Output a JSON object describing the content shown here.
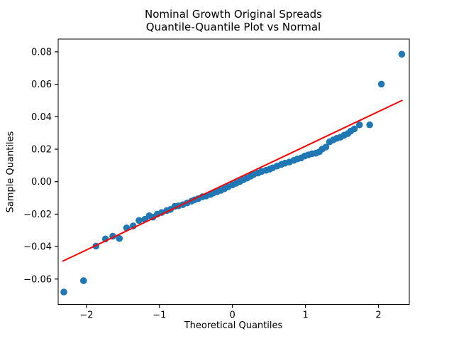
{
  "header": {
    "title_line1": "Nominal Growth Original Spreads",
    "title_line2": "Quantile-Quantile Plot vs Normal"
  },
  "chart_data": {
    "type": "scatter",
    "title": "Nominal Growth Original Spreads\nQuantile-Quantile Plot vs Normal",
    "xlabel": "Theoretical Quantiles",
    "ylabel": "Sample Quantiles",
    "xlim": [
      -2.39,
      2.42
    ],
    "ylim": [
      -0.0756,
      0.0878
    ],
    "xticks": [
      -2,
      -1,
      0,
      1,
      2
    ],
    "yticks": [
      -0.06,
      -0.04,
      -0.02,
      0.0,
      0.02,
      0.04,
      0.06,
      0.08
    ],
    "grid": false,
    "legend_position": "none",
    "marker_color": "#1f77b4",
    "line_color": "#ff0000",
    "series": [
      {
        "name": "sample_vs_theoretical_quantiles",
        "type": "scatter",
        "color": "#1f77b4",
        "points": [
          [
            -2.31,
            -0.068
          ],
          [
            -2.04,
            -0.061
          ],
          [
            -1.87,
            -0.0397
          ],
          [
            -1.74,
            -0.0353
          ],
          [
            -1.64,
            -0.0336
          ],
          [
            -1.55,
            -0.035
          ],
          [
            -1.45,
            -0.0285
          ],
          [
            -1.36,
            -0.0273
          ],
          [
            -1.28,
            -0.0239
          ],
          [
            -1.2,
            -0.0232
          ],
          [
            -1.14,
            -0.021
          ],
          [
            -1.09,
            -0.0219
          ],
          [
            -1.03,
            -0.02
          ],
          [
            -0.97,
            -0.019
          ],
          [
            -0.9,
            -0.0178
          ],
          [
            -0.85,
            -0.0171
          ],
          [
            -0.79,
            -0.0152
          ],
          [
            -0.74,
            -0.0149
          ],
          [
            -0.68,
            -0.0142
          ],
          [
            -0.62,
            -0.0131
          ],
          [
            -0.56,
            -0.012
          ],
          [
            -0.52,
            -0.0112
          ],
          [
            -0.47,
            -0.0105
          ],
          [
            -0.41,
            -0.0093
          ],
          [
            -0.36,
            -0.0088
          ],
          [
            -0.3,
            -0.0079
          ],
          [
            -0.26,
            -0.0069
          ],
          [
            -0.21,
            -0.0062
          ],
          [
            -0.16,
            -0.0054
          ],
          [
            -0.11,
            -0.0044
          ],
          [
            -0.06,
            -0.0032
          ],
          [
            0.0,
            -0.002
          ],
          [
            0.05,
            -0.001
          ],
          [
            0.1,
            0.0
          ],
          [
            0.15,
            0.0012
          ],
          [
            0.2,
            0.0022
          ],
          [
            0.25,
            0.0034
          ],
          [
            0.29,
            0.0044
          ],
          [
            0.35,
            0.0053
          ],
          [
            0.4,
            0.0063
          ],
          [
            0.46,
            0.007
          ],
          [
            0.51,
            0.0077
          ],
          [
            0.55,
            0.0085
          ],
          [
            0.61,
            0.0096
          ],
          [
            0.67,
            0.0106
          ],
          [
            0.72,
            0.0114
          ],
          [
            0.78,
            0.0121
          ],
          [
            0.84,
            0.0131
          ],
          [
            0.89,
            0.014
          ],
          [
            0.94,
            0.0146
          ],
          [
            0.99,
            0.0158
          ],
          [
            1.04,
            0.0165
          ],
          [
            1.09,
            0.0172
          ],
          [
            1.14,
            0.0175
          ],
          [
            1.19,
            0.0184
          ],
          [
            1.23,
            0.0201
          ],
          [
            1.28,
            0.0213
          ],
          [
            1.33,
            0.0245
          ],
          [
            1.38,
            0.0257
          ],
          [
            1.43,
            0.0267
          ],
          [
            1.48,
            0.0274
          ],
          [
            1.53,
            0.0286
          ],
          [
            1.58,
            0.0296
          ],
          [
            1.62,
            0.0311
          ],
          [
            1.67,
            0.0325
          ],
          [
            1.74,
            0.035
          ],
          [
            1.88,
            0.035
          ],
          [
            2.04,
            0.0601
          ],
          [
            2.32,
            0.0785
          ]
        ]
      },
      {
        "name": "normal_fit_line",
        "type": "line",
        "color": "#ff0000",
        "points": [
          [
            -2.33,
            -0.0491
          ],
          [
            2.33,
            0.0502
          ]
        ]
      }
    ]
  }
}
